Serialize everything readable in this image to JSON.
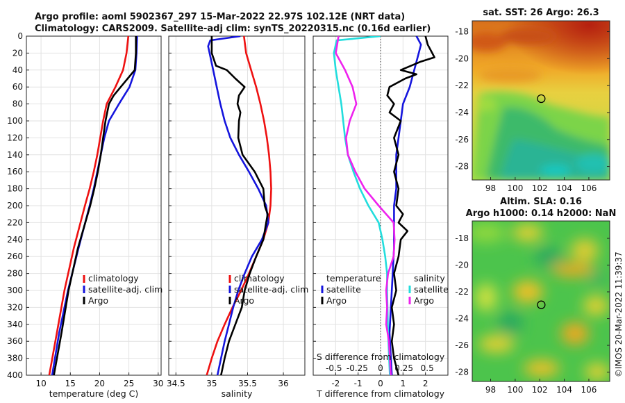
{
  "title": {
    "line1": "Argo profile: aoml 5902367_297 15-Mar-2022 22.97S 102.12E (NRT data)",
    "line2": "Climatology: CARS2009. Satellite-adj clim: synTS_20220315.nc (0.16d earlier)"
  },
  "colors": {
    "climatology": "#ee1111",
    "satellite": "#1515dd",
    "argo": "#000000",
    "temp_diff": "#22dddd",
    "sal_diff": "#ee22ee"
  },
  "copyright": "©IMOS 20-Mar-2022 11:39:37",
  "chart_data": [
    {
      "type": "line",
      "name": "temperature-profile",
      "xlabel": "temperature (deg C)",
      "ylabel": "",
      "xlim": [
        7.5,
        30.5
      ],
      "ylim": [
        400,
        0
      ],
      "xticks": [
        10,
        15,
        20,
        25,
        30
      ],
      "yticks": [
        0,
        20,
        40,
        60,
        80,
        100,
        120,
        140,
        160,
        180,
        200,
        220,
        240,
        260,
        280,
        300,
        320,
        340,
        360,
        380,
        400
      ],
      "legend": [
        "climatology",
        "satellite-adj. clim",
        "Argo"
      ],
      "series": [
        {
          "name": "climatology",
          "color_key": "climatology",
          "depth": [
            0,
            20,
            40,
            60,
            80,
            100,
            120,
            140,
            160,
            180,
            200,
            250,
            300,
            350,
            400
          ],
          "values": [
            24.9,
            24.6,
            24.0,
            22.7,
            21.2,
            20.6,
            20.1,
            19.6,
            19.0,
            18.3,
            17.5,
            15.6,
            14.0,
            12.7,
            11.4
          ]
        },
        {
          "name": "satellite-adj. clim",
          "color_key": "satellite",
          "depth": [
            0,
            20,
            40,
            60,
            80,
            100,
            120,
            140,
            160,
            180,
            200,
            250,
            300,
            350,
            400
          ],
          "values": [
            26.4,
            26.3,
            26.1,
            25.1,
            23.3,
            21.6,
            20.8,
            20.2,
            19.6,
            19.0,
            18.3,
            16.4,
            14.6,
            13.1,
            11.9
          ]
        },
        {
          "name": "Argo",
          "color_key": "argo",
          "depth": [
            0,
            20,
            40,
            50,
            60,
            70,
            80,
            100,
            120,
            140,
            160,
            180,
            200,
            250,
            300,
            350,
            400
          ],
          "values": [
            26.2,
            26.2,
            26.0,
            24.8,
            23.6,
            22.4,
            21.6,
            21.0,
            20.6,
            20.2,
            19.7,
            19.1,
            18.4,
            16.3,
            14.7,
            13.5,
            12.2
          ]
        }
      ]
    },
    {
      "type": "line",
      "name": "salinity-profile",
      "xlabel": "salinity",
      "xlim": [
        34.4,
        36.3
      ],
      "ylim": [
        400,
        0
      ],
      "xticks": [
        34.5,
        35,
        35.5,
        36
      ],
      "legend": [
        "climatology",
        "satellite-adj. clim",
        "Argo"
      ],
      "series": [
        {
          "name": "climatology",
          "color_key": "climatology",
          "depth": [
            0,
            20,
            40,
            60,
            80,
            100,
            120,
            140,
            160,
            180,
            200,
            220,
            240,
            260,
            280,
            300,
            320,
            340,
            360,
            380,
            400
          ],
          "values": [
            35.45,
            35.48,
            35.55,
            35.62,
            35.68,
            35.73,
            35.77,
            35.8,
            35.82,
            35.83,
            35.82,
            35.79,
            35.72,
            35.62,
            35.52,
            35.41,
            35.29,
            35.18,
            35.08,
            35.0,
            34.93
          ]
        },
        {
          "name": "satellite-adj. clim",
          "color_key": "satellite",
          "depth": [
            0,
            5,
            12,
            20,
            40,
            60,
            80,
            100,
            120,
            140,
            160,
            180,
            200,
            220,
            240,
            260,
            280,
            300,
            320,
            340,
            360,
            380,
            400
          ],
          "values": [
            35.4,
            34.98,
            34.95,
            34.97,
            35.02,
            35.07,
            35.12,
            35.18,
            35.26,
            35.38,
            35.52,
            35.65,
            35.76,
            35.79,
            35.7,
            35.56,
            35.46,
            35.37,
            35.3,
            35.24,
            35.18,
            35.13,
            35.08
          ]
        },
        {
          "name": "Argo",
          "color_key": "argo",
          "depth": [
            0,
            20,
            35,
            40,
            50,
            60,
            70,
            80,
            90,
            100,
            120,
            140,
            160,
            180,
            200,
            210,
            220,
            240,
            260,
            280,
            300,
            320,
            340,
            360,
            380,
            400
          ],
          "values": [
            35.0,
            35.0,
            35.06,
            35.21,
            35.33,
            35.46,
            35.38,
            35.36,
            35.4,
            35.38,
            35.37,
            35.43,
            35.6,
            35.72,
            35.74,
            35.78,
            35.76,
            35.72,
            35.62,
            35.53,
            35.46,
            35.42,
            35.33,
            35.24,
            35.18,
            35.13
          ]
        }
      ]
    },
    {
      "type": "line",
      "name": "difference-profile",
      "xlabel": "T difference from climatology",
      "top_label": "S difference from climatology",
      "xlim": [
        -3.0,
        3.0
      ],
      "ylim": [
        400,
        0
      ],
      "xticks": [
        -2,
        -1,
        0,
        1,
        2
      ],
      "s_ticks": [
        -0.5,
        -0.25,
        0,
        0.25,
        0.5
      ],
      "s_tick_labels": [
        "-0.5",
        "-0.25",
        "0",
        "0.25",
        "0.5"
      ],
      "legend_left_title": "temperature",
      "legend_right_title": "salinity",
      "legend_left": [
        "satellite",
        "Argo"
      ],
      "legend_right": [
        "satellite",
        "Argo"
      ],
      "series": [
        {
          "name": "T satellite",
          "color_key": "satellite",
          "depth": [
            0,
            10,
            20,
            40,
            60,
            80,
            100,
            120,
            140,
            160,
            180,
            200,
            250,
            300,
            350,
            400
          ],
          "values": [
            1.6,
            1.8,
            1.7,
            1.5,
            1.3,
            1.0,
            0.9,
            0.8,
            0.7,
            0.7,
            0.7,
            0.6,
            0.6,
            0.5,
            0.4,
            0.5
          ]
        },
        {
          "name": "T Argo",
          "color_key": "argo",
          "depth": [
            0,
            10,
            20,
            25,
            30,
            40,
            45,
            50,
            60,
            70,
            80,
            90,
            100,
            120,
            140,
            160,
            180,
            200,
            210,
            220,
            230,
            240,
            260,
            280,
            300,
            320,
            340,
            360,
            380,
            400
          ],
          "values": [
            2.0,
            2.1,
            2.3,
            2.4,
            1.8,
            0.9,
            1.6,
            1.1,
            0.4,
            0.3,
            0.6,
            0.4,
            0.9,
            0.6,
            0.8,
            0.6,
            0.8,
            0.7,
            1.0,
            0.8,
            1.2,
            0.9,
            0.8,
            0.6,
            0.7,
            0.5,
            0.6,
            0.5,
            0.6,
            0.8
          ]
        },
        {
          "name": "S satellite",
          "color_key": "temp_diff",
          "depth": [
            0,
            5,
            20,
            40,
            60,
            80,
            100,
            120,
            140,
            160,
            180,
            200,
            220,
            240,
            260,
            280,
            300,
            350,
            400
          ],
          "values": [
            0.0,
            -0.47,
            -0.5,
            -0.48,
            -0.45,
            -0.42,
            -0.4,
            -0.38,
            -0.35,
            -0.29,
            -0.22,
            -0.13,
            -0.02,
            0.02,
            0.05,
            0.07,
            0.07,
            0.08,
            0.1
          ]
        },
        {
          "name": "S Argo",
          "color_key": "sal_diff",
          "depth": [
            0,
            20,
            40,
            60,
            80,
            100,
            120,
            140,
            160,
            180,
            200,
            220,
            240,
            260,
            280,
            300,
            320,
            340,
            360,
            380,
            400
          ],
          "values": [
            -0.45,
            -0.48,
            -0.38,
            -0.3,
            -0.26,
            -0.33,
            -0.37,
            -0.35,
            -0.27,
            -0.17,
            -0.02,
            0.14,
            0.15,
            0.14,
            0.08,
            0.06,
            0.07,
            0.06,
            0.09,
            0.1,
            0.11
          ]
        }
      ]
    },
    {
      "type": "heatmap",
      "name": "sst-map",
      "title": "sat. SST: 26 Argo: 26.3",
      "xticks": [
        98,
        100,
        102,
        104,
        106
      ],
      "yticks": [
        -18,
        -20,
        -22,
        -24,
        -26,
        -28
      ],
      "xlim": [
        96.5,
        107.7
      ],
      "ylim": [
        -29.0,
        -17.2
      ],
      "marker": {
        "lon": 102.12,
        "lat": -22.97
      }
    },
    {
      "type": "heatmap",
      "name": "sla-map",
      "title_line1": "Altim. SLA: 0.16",
      "title_line2": "Argo h1000: 0.14 h2000: NaN",
      "xticks": [
        98,
        100,
        102,
        104,
        106
      ],
      "yticks": [
        -18,
        -20,
        -22,
        -24,
        -26,
        -28
      ],
      "xlim": [
        96.5,
        107.7
      ],
      "ylim": [
        -28.7,
        -16.7
      ],
      "marker": {
        "lon": 102.12,
        "lat": -22.97
      }
    }
  ]
}
